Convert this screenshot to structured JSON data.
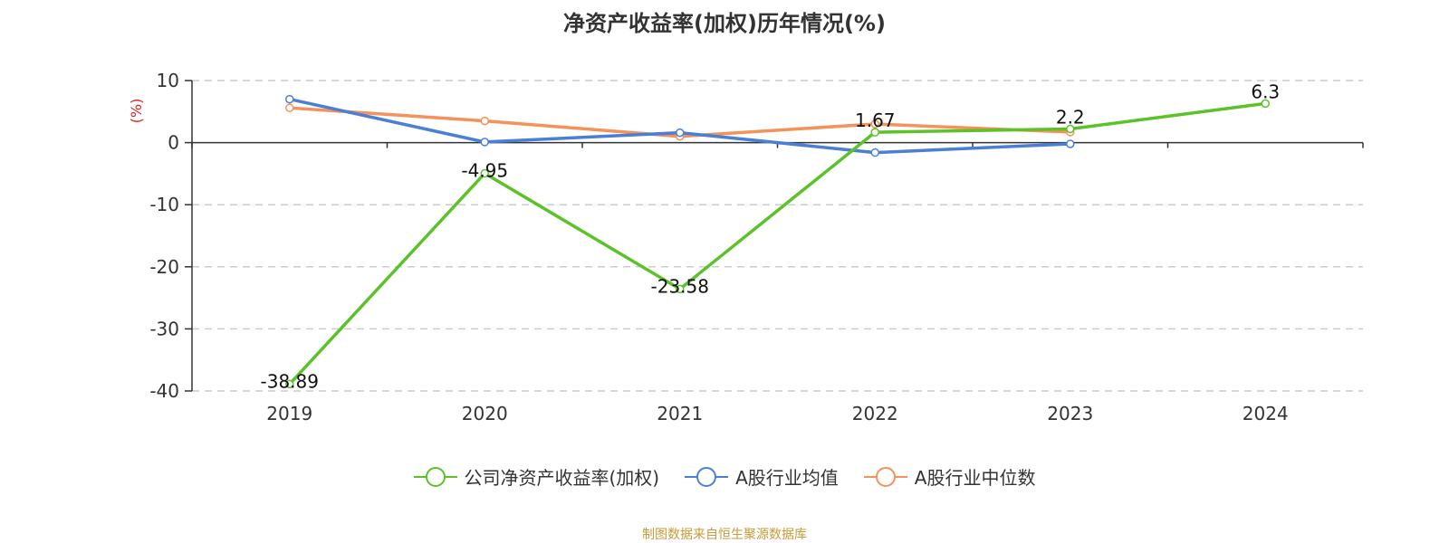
{
  "chart_data": {
    "type": "line",
    "title": "净资产收益率(加权)历年情况(%)",
    "ylabel": "(%)",
    "xlabel": "",
    "categories": [
      "2019",
      "2020",
      "2021",
      "2022",
      "2023",
      "2024"
    ],
    "ylim": [
      -40,
      10
    ],
    "yticks": [
      10,
      0,
      -10,
      -20,
      -30,
      -40
    ],
    "grid": true,
    "legend_position": "bottom",
    "series": [
      {
        "name": "公司净资产收益率(加权)",
        "color": "#5cc22a",
        "values": [
          -38.89,
          -4.95,
          -23.58,
          1.67,
          2.2,
          6.3
        ],
        "labels": true
      },
      {
        "name": "A股行业均值",
        "color": "#4a7fd8",
        "values": [
          7.0,
          0.1,
          1.6,
          -1.6,
          -0.2,
          null
        ],
        "labels": false
      },
      {
        "name": "A股行业中位数",
        "color": "#f5915a",
        "values": [
          5.6,
          3.5,
          1.0,
          3.0,
          1.7,
          null
        ],
        "labels": false
      }
    ]
  },
  "source": "制图数据来自恒生聚源数据库"
}
